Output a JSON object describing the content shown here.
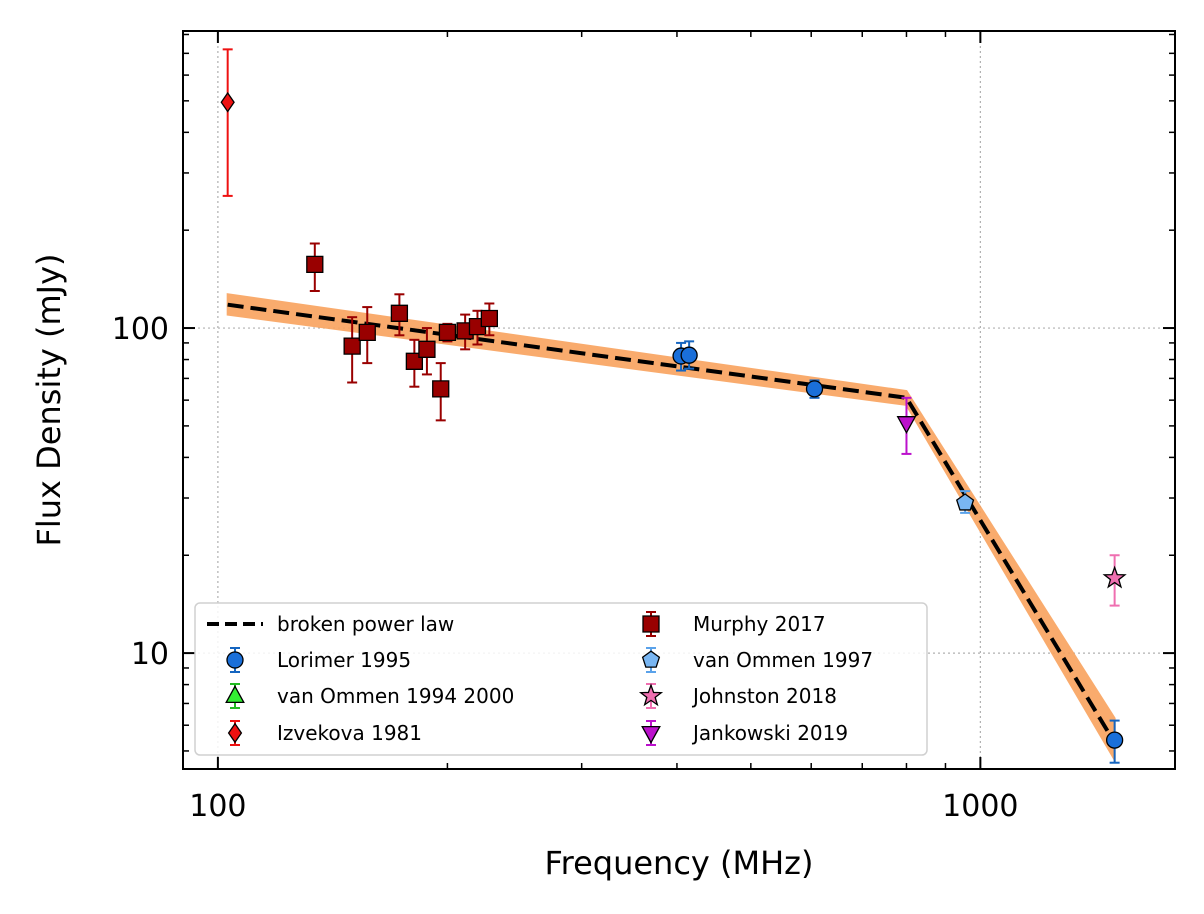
{
  "chart_data": {
    "type": "scatter",
    "title": "",
    "xlabel": "Frequency (MHz)",
    "ylabel": "Flux Density (mJy)",
    "xscale": "log",
    "yscale": "log",
    "xlim": [
      90,
      1800
    ],
    "ylim": [
      4.4,
      820
    ],
    "xticks": [
      {
        "value": 100,
        "label": "100"
      },
      {
        "value": 1000,
        "label": "1000"
      }
    ],
    "yticks": [
      {
        "value": 10,
        "label": "10"
      },
      {
        "value": 100,
        "label": "100"
      }
    ],
    "grid": true,
    "legend": {
      "position": "lower-left",
      "columns": 2
    },
    "model": {
      "name": "broken power law",
      "color": "#000000",
      "band_color": "#f9a35e",
      "x": [
        103,
        800,
        1500
      ],
      "y": [
        118,
        61,
        5.3
      ],
      "band_upper": [
        127,
        64,
        6.3
      ],
      "band_lower": [
        110,
        58,
        4.7
      ]
    },
    "series": [
      {
        "name": "Lorimer 1995",
        "marker": "circle",
        "color": "#1a6fd9",
        "ecolor": "#1565c0",
        "points": [
          {
            "x": 405,
            "y": 82,
            "lo": 74,
            "hi": 90
          },
          {
            "x": 415,
            "y": 82.5,
            "lo": 75,
            "hi": 91
          },
          {
            "x": 606,
            "y": 65,
            "lo": 61,
            "hi": 69
          },
          {
            "x": 1500,
            "y": 5.4,
            "lo": 4.6,
            "hi": 6.2
          }
        ]
      },
      {
        "name": "van Ommen 1994 2000",
        "marker": "triangle-up",
        "color": "#33ee33",
        "ecolor": "#22bb22",
        "points": []
      },
      {
        "name": "Izvekova 1981",
        "marker": "diamond",
        "color": "#ee1111",
        "ecolor": "#ee1111",
        "points": [
          {
            "x": 103,
            "y": 495,
            "lo": 255,
            "hi": 720
          }
        ]
      },
      {
        "name": "Murphy 2017",
        "marker": "square",
        "color": "#990000",
        "ecolor": "#990000",
        "points": [
          {
            "x": 134,
            "y": 157,
            "lo": 130,
            "hi": 182
          },
          {
            "x": 150,
            "y": 88,
            "lo": 68,
            "hi": 108
          },
          {
            "x": 157,
            "y": 97,
            "lo": 78,
            "hi": 116
          },
          {
            "x": 173,
            "y": 111,
            "lo": 95,
            "hi": 127
          },
          {
            "x": 181,
            "y": 79,
            "lo": 66,
            "hi": 92
          },
          {
            "x": 188,
            "y": 86,
            "lo": 72,
            "hi": 100
          },
          {
            "x": 196,
            "y": 65,
            "lo": 52,
            "hi": 78
          },
          {
            "x": 200,
            "y": 97,
            "lo": 91,
            "hi": 103
          },
          {
            "x": 211,
            "y": 98,
            "lo": 86,
            "hi": 110
          },
          {
            "x": 219,
            "y": 101,
            "lo": 89,
            "hi": 113
          },
          {
            "x": 227,
            "y": 107,
            "lo": 95,
            "hi": 119
          }
        ]
      },
      {
        "name": "van Ommen 1997",
        "marker": "pentagon",
        "color": "#79b6f2",
        "ecolor": "#5aa2ea",
        "points": [
          {
            "x": 955,
            "y": 29,
            "lo": 27,
            "hi": 31.5
          }
        ]
      },
      {
        "name": "Johnston 2018",
        "marker": "star",
        "color": "#ef6fb0",
        "ecolor": "#ef6fb0",
        "points": [
          {
            "x": 1500,
            "y": 17,
            "lo": 14,
            "hi": 20
          }
        ]
      },
      {
        "name": "Jankowski 2019",
        "marker": "triangle-down",
        "color": "#bb11cc",
        "ecolor": "#bb11cc",
        "points": [
          {
            "x": 800,
            "y": 51,
            "lo": 41,
            "hi": 61
          }
        ]
      }
    ]
  }
}
